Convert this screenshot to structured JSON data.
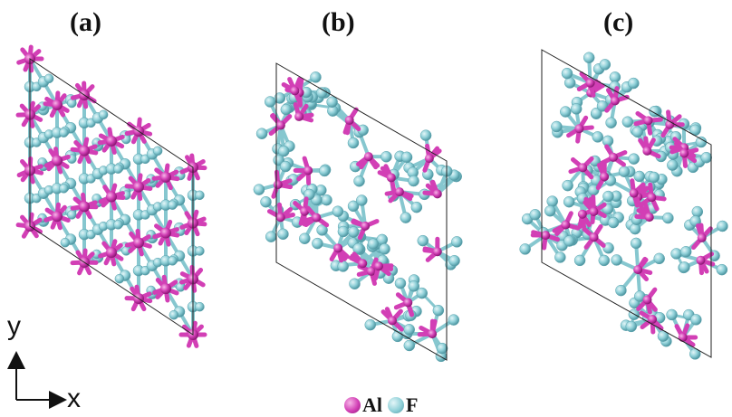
{
  "panels": [
    {
      "label": "(a)",
      "kind": "ordered"
    },
    {
      "label": "(b)",
      "kind": "amorphous"
    },
    {
      "label": "(c)",
      "kind": "amorphous"
    }
  ],
  "axes": {
    "x_label": "x",
    "y_label": "y"
  },
  "legend": [
    {
      "label": "Al",
      "color": "#d23fb5"
    },
    {
      "label": "F",
      "color": "#8fd0d8"
    }
  ],
  "colors": {
    "al": "#d23fb5",
    "al_dark": "#a51f8b",
    "f": "#8fd0d8",
    "f_dark": "#5aa2ad",
    "bond": "#86c7cf",
    "cell": "#222222"
  }
}
